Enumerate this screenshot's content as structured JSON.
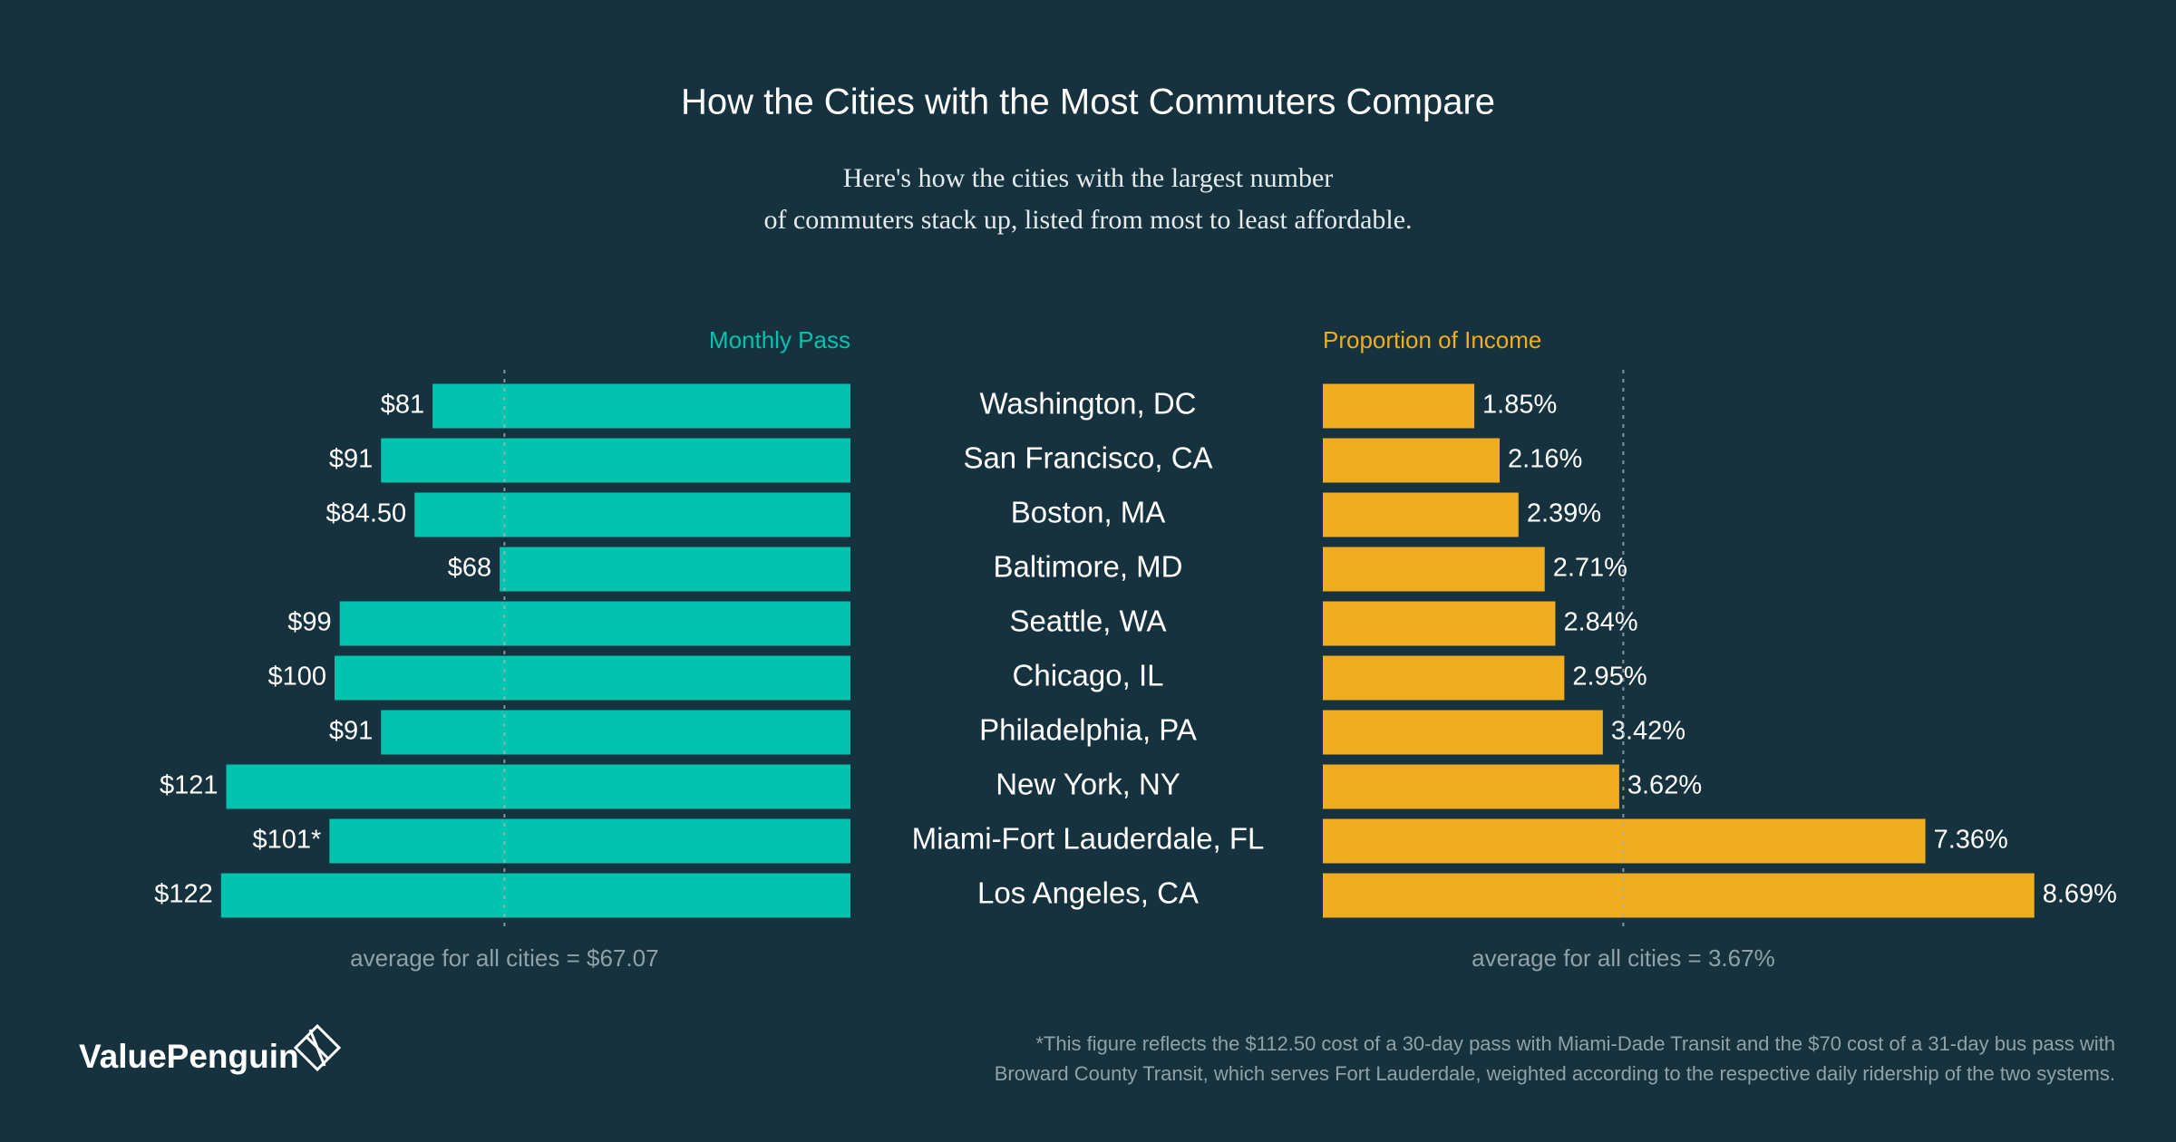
{
  "header": {
    "title": "How the Cities with the Most Commuters Compare",
    "subtitle": [
      "Here's how the cities with the largest number",
      "of commuters stack up, listed from most to least affordable."
    ]
  },
  "chart_data": [
    {
      "type": "bar",
      "orientation": "horizontal",
      "reversed": true,
      "x_label": "Monthly Pass",
      "color": "#00c3ae",
      "categories": [
        "Washington, DC",
        "San Francisco, CA",
        "Boston, MA",
        "Baltimore, MD",
        "Seattle, WA",
        "Chicago, IL",
        "Philadelphia, PA",
        "New York, NY",
        "Miami-Fort Lauderdale, FL",
        "Los Angeles, CA"
      ],
      "values": [
        81,
        91,
        84.5,
        68,
        99,
        100,
        91,
        121,
        101,
        122
      ],
      "value_labels": [
        "$81",
        "$91",
        "$84.50",
        "$68",
        "$99",
        "$100",
        "$91",
        "$121",
        "$101*",
        "$122"
      ],
      "average": 67.07,
      "average_label": "average for all cities = $67.07"
    },
    {
      "type": "bar",
      "orientation": "horizontal",
      "reversed": false,
      "x_label": "Proportion of Income",
      "color": "#f0ad1e",
      "values": [
        1.85,
        2.16,
        2.39,
        2.71,
        2.84,
        2.95,
        3.42,
        3.62,
        7.36,
        8.69
      ],
      "value_labels": [
        "1.85%",
        "2.16%",
        "2.39%",
        "2.71%",
        "2.84%",
        "2.95%",
        "3.42%",
        "3.62%",
        "7.36%",
        "8.69%"
      ],
      "average": 3.67,
      "average_label": "average for all cities = 3.67%"
    }
  ],
  "footnote": [
    "*This figure reflects the $112.50 cost of a 30-day pass with Miami-Dade Transit and the $70 cost of a 31-day bus pass with",
    "Broward County Transit, which serves Fort Lauderdale, weighted according to the respective daily ridership of the two systems."
  ],
  "logo": "ValuePenguin"
}
